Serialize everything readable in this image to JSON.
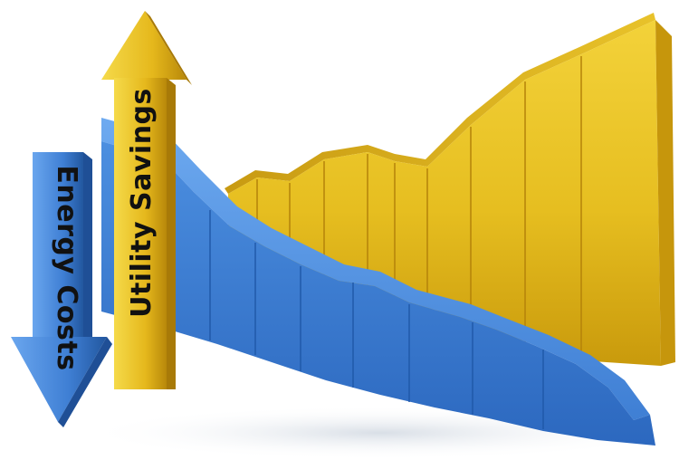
{
  "labels": {
    "energy_costs": "Energy Costs",
    "utility_savings": "Utility Savings"
  },
  "colors": {
    "gold_light": "#f3d23a",
    "gold_mid": "#e1b51a",
    "gold_dark": "#b9880a",
    "blue_light": "#5c9de6",
    "blue_mid": "#3f7fd4",
    "blue_dark": "#1f58a8",
    "text": "#111111"
  },
  "icons": [
    "energy-costs-down-arrow",
    "utility-savings-up-arrow"
  ]
}
